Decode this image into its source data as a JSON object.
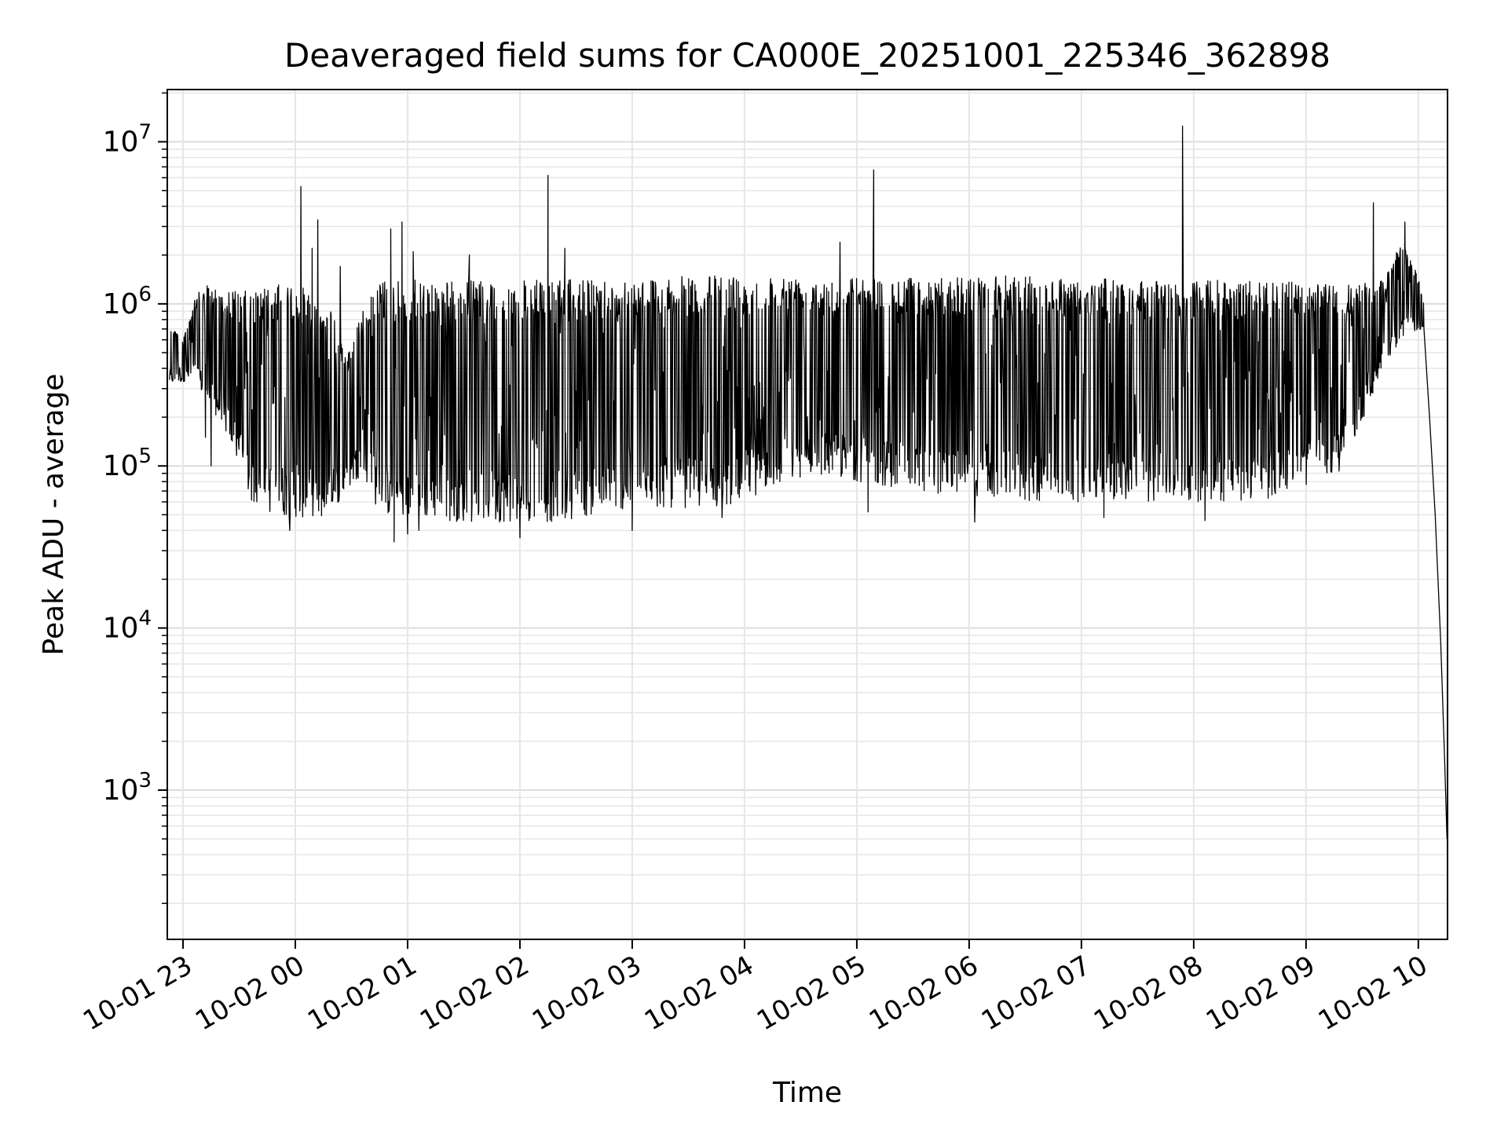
{
  "chart_data": {
    "type": "line",
    "title": "Deaveraged field sums for CA000E_20251001_225346_362898",
    "xlabel": "Time",
    "ylabel": "Peak ADU - average",
    "yscale": "log",
    "ylim": [
      120,
      21000000
    ],
    "xlim_hours": [
      -0.14,
      11.26
    ],
    "grid": true,
    "x_tick_labels": [
      "10-01 23",
      "10-02 00",
      "10-02 01",
      "10-02 02",
      "10-02 03",
      "10-02 04",
      "10-02 05",
      "10-02 06",
      "10-02 07",
      "10-02 08",
      "10-02 09",
      "10-02 10"
    ],
    "x_tick_hours": [
      0,
      1,
      2,
      3,
      4,
      5,
      6,
      7,
      8,
      9,
      10,
      11
    ],
    "y_ticks": [
      {
        "value": 1000,
        "base": "10",
        "exp": "3"
      },
      {
        "value": 10000,
        "base": "10",
        "exp": "4"
      },
      {
        "value": 100000,
        "base": "10",
        "exp": "5"
      },
      {
        "value": 1000000,
        "base": "10",
        "exp": "6"
      },
      {
        "value": 10000000,
        "base": "10",
        "exp": "7"
      }
    ],
    "series": [
      {
        "name": "Peak ADU - average",
        "color": "#000000",
        "envelope": [
          {
            "t": -0.12,
            "low": 320000,
            "high": 800000
          },
          {
            "t": 0.0,
            "low": 330000,
            "high": 600000
          },
          {
            "t": 0.1,
            "low": 350000,
            "high": 1100000
          },
          {
            "t": 0.2,
            "low": 250000,
            "high": 1300000
          },
          {
            "t": 0.35,
            "low": 180000,
            "high": 1250000
          },
          {
            "t": 0.5,
            "low": 100000,
            "high": 1200000
          },
          {
            "t": 0.6,
            "low": 60000,
            "high": 1200000
          },
          {
            "t": 0.8,
            "low": 50000,
            "high": 1300000
          },
          {
            "t": 1.0,
            "low": 48000,
            "high": 1350000
          },
          {
            "t": 1.3,
            "low": 47000,
            "high": 1000000
          },
          {
            "t": 1.45,
            "low": 70000,
            "high": 500000
          },
          {
            "t": 1.6,
            "low": 90000,
            "high": 900000
          },
          {
            "t": 1.75,
            "low": 50000,
            "high": 1400000
          },
          {
            "t": 2.5,
            "low": 45000,
            "high": 1400000
          },
          {
            "t": 3.3,
            "low": 45000,
            "high": 1400000
          },
          {
            "t": 4.0,
            "low": 55000,
            "high": 1450000
          },
          {
            "t": 4.8,
            "low": 55000,
            "high": 1500000
          },
          {
            "t": 5.6,
            "low": 90000,
            "high": 1500000
          },
          {
            "t": 6.5,
            "low": 70000,
            "high": 1450000
          },
          {
            "t": 7.5,
            "low": 60000,
            "high": 1500000
          },
          {
            "t": 8.5,
            "low": 60000,
            "high": 1400000
          },
          {
            "t": 9.6,
            "low": 60000,
            "high": 1400000
          },
          {
            "t": 10.3,
            "low": 90000,
            "high": 1300000
          },
          {
            "t": 10.7,
            "low": 400000,
            "high": 1400000
          },
          {
            "t": 10.85,
            "low": 600000,
            "high": 2500000
          },
          {
            "t": 11.0,
            "low": 700000,
            "high": 1500000
          },
          {
            "t": 11.05,
            "low": 650000,
            "high": 1000000
          }
        ],
        "tail": [
          {
            "t": 11.05,
            "value": 700000
          },
          {
            "t": 11.1,
            "value": 200000
          },
          {
            "t": 11.15,
            "value": 50000
          },
          {
            "t": 11.2,
            "value": 8000
          },
          {
            "t": 11.235,
            "value": 1500
          },
          {
            "t": 11.255,
            "value": 500
          }
        ],
        "spikes": [
          {
            "t": 1.05,
            "value": 5300000
          },
          {
            "t": 1.2,
            "value": 3300000
          },
          {
            "t": 1.15,
            "value": 2200000
          },
          {
            "t": 1.4,
            "value": 1700000
          },
          {
            "t": 1.85,
            "value": 2900000
          },
          {
            "t": 1.95,
            "value": 3200000
          },
          {
            "t": 2.05,
            "value": 2100000
          },
          {
            "t": 2.55,
            "value": 2000000
          },
          {
            "t": 3.25,
            "value": 6200000
          },
          {
            "t": 3.4,
            "value": 2200000
          },
          {
            "t": 5.85,
            "value": 2400000
          },
          {
            "t": 6.15,
            "value": 6700000
          },
          {
            "t": 8.9,
            "value": 12500000
          },
          {
            "t": 10.6,
            "value": 4200000
          },
          {
            "t": 10.88,
            "value": 3200000
          }
        ],
        "dips": [
          {
            "t": 0.2,
            "value": 150000
          },
          {
            "t": 0.25,
            "value": 100000
          },
          {
            "t": 0.95,
            "value": 40000
          },
          {
            "t": 1.88,
            "value": 34000
          },
          {
            "t": 2.0,
            "value": 38000
          },
          {
            "t": 2.1,
            "value": 40000
          },
          {
            "t": 3.0,
            "value": 36000
          },
          {
            "t": 4.0,
            "value": 40000
          },
          {
            "t": 4.8,
            "value": 48000
          },
          {
            "t": 6.1,
            "value": 52000
          },
          {
            "t": 7.05,
            "value": 45000
          },
          {
            "t": 8.2,
            "value": 48000
          },
          {
            "t": 9.1,
            "value": 46000
          }
        ]
      }
    ]
  }
}
